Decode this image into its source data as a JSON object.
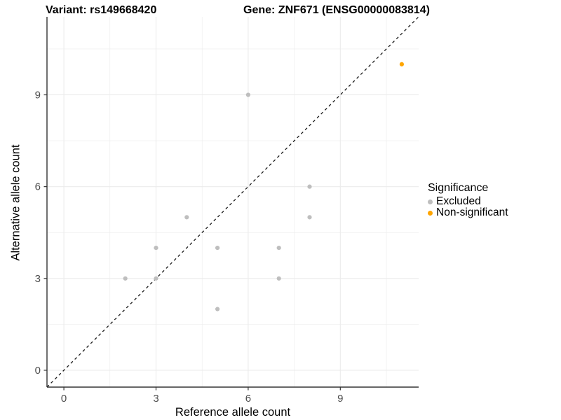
{
  "titles": {
    "variant": "Variant: rs149668420",
    "gene": "Gene: ZNF671 (ENSG00000083814)"
  },
  "chart_data": {
    "type": "scatter",
    "xlabel": "Reference allele count",
    "ylabel": "Alternative allele count",
    "xticks": [
      0,
      3,
      6,
      9
    ],
    "yticks": [
      0,
      3,
      6,
      9
    ],
    "xlim": [
      -0.55,
      11.55
    ],
    "ylim": [
      -0.55,
      11.55
    ],
    "grid": "major and minor, light gray",
    "identity_line": {
      "type": "dashed",
      "from": [
        -0.55,
        -0.55
      ],
      "to": [
        11.55,
        11.55
      ],
      "color": "#1a1a1a"
    },
    "legend": {
      "title": "Significance",
      "position": "right",
      "entries": [
        {
          "label": "Excluded",
          "color": "#BEBEBE"
        },
        {
          "label": "Non-significant",
          "color": "#FFA500"
        }
      ]
    },
    "series": [
      {
        "name": "Excluded",
        "color": "#BEBEBE",
        "points": [
          [
            2,
            3
          ],
          [
            3,
            3
          ],
          [
            3,
            4
          ],
          [
            4,
            5
          ],
          [
            5,
            2
          ],
          [
            5,
            4
          ],
          [
            6,
            9
          ],
          [
            7,
            3
          ],
          [
            7,
            4
          ],
          [
            8,
            5
          ],
          [
            8,
            6
          ]
        ]
      },
      {
        "name": "Non-significant",
        "color": "#FFA500",
        "points": [
          [
            11,
            10
          ]
        ]
      }
    ]
  }
}
